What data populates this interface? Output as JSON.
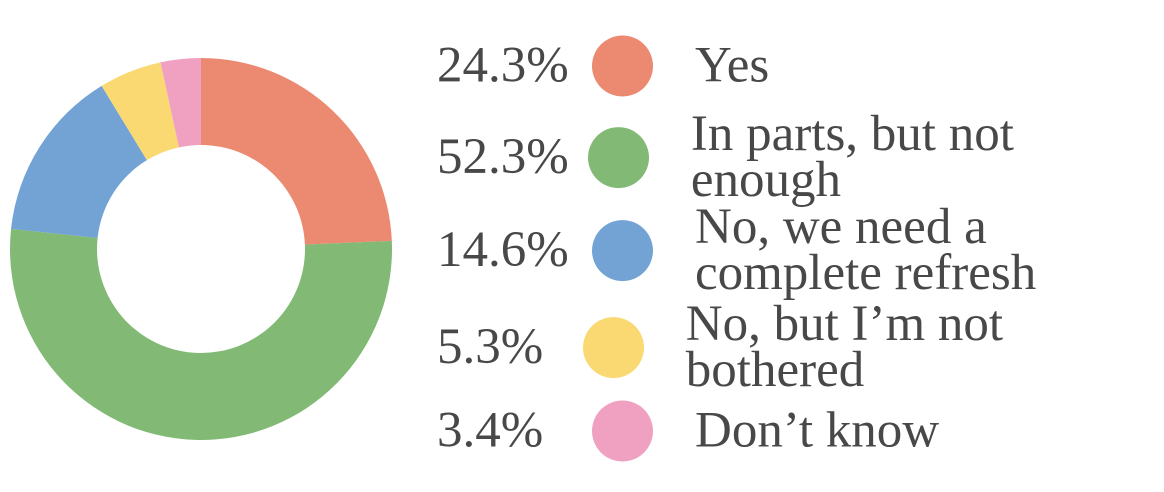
{
  "chart_data": {
    "type": "pie",
    "subtype": "donut",
    "unit": "%",
    "categories": [
      "Yes",
      "In parts, but not enough",
      "No, we need a complete refresh",
      "No, but I’m not bothered",
      "Don’t know"
    ],
    "values": [
      24.3,
      52.3,
      14.6,
      5.3,
      3.4
    ],
    "colors": [
      "#EC8A71",
      "#82B975",
      "#72A3D4",
      "#FAD973",
      "#F0A0C1"
    ],
    "start_angle_deg": 0,
    "direction": "clockwise",
    "inner_radius_ratio": 0.545,
    "legend_position": "right",
    "grid": false
  },
  "legend": {
    "rows": [
      {
        "percent": "24.3%",
        "label": "Yes",
        "color": "#EC8A71"
      },
      {
        "percent": "52.3%",
        "label": "In parts, but not enough",
        "color": "#82B975"
      },
      {
        "percent": "14.6%",
        "label": "No, we need a\ncomplete refresh",
        "color": "#72A3D4"
      },
      {
        "percent": "5.3%",
        "label": "No, but I’m not bothered",
        "color": "#FAD973"
      },
      {
        "percent": "3.4%",
        "label": "Don’t know",
        "color": "#F0A0C1"
      }
    ]
  },
  "colors": {
    "text": "#484848",
    "background": "#FFFFFF"
  }
}
